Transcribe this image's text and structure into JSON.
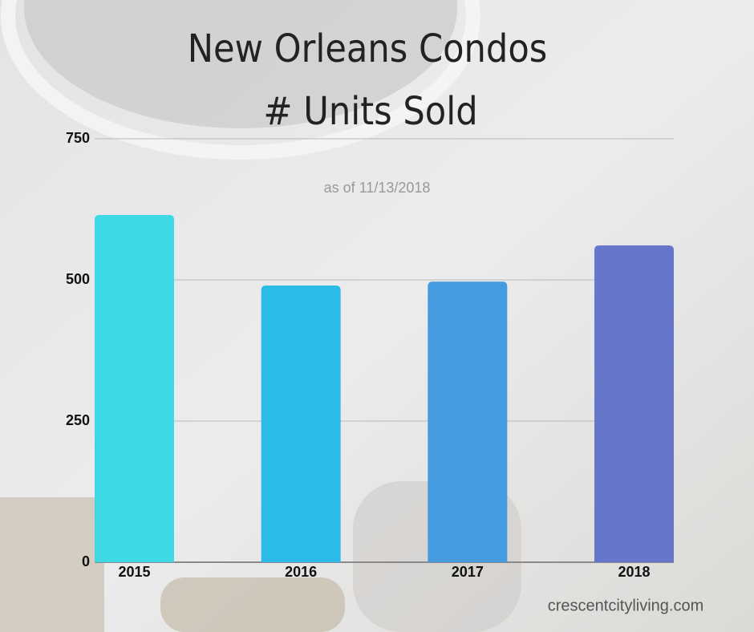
{
  "chart_data": {
    "type": "bar",
    "title": [
      "New Orleans Condos",
      "# Units Sold"
    ],
    "subtitle": "as of 11/13/2018",
    "source": "crescentcityliving.com",
    "categories": [
      "2015",
      "2016",
      "2017",
      "2018"
    ],
    "values": [
      615,
      490,
      497,
      561
    ],
    "colors": [
      "#3fd9e6",
      "#2abbe9",
      "#449be0",
      "#6676cb"
    ],
    "ylim": [
      0,
      750
    ],
    "yticks": [
      0,
      250,
      500,
      750
    ],
    "grid": true
  }
}
